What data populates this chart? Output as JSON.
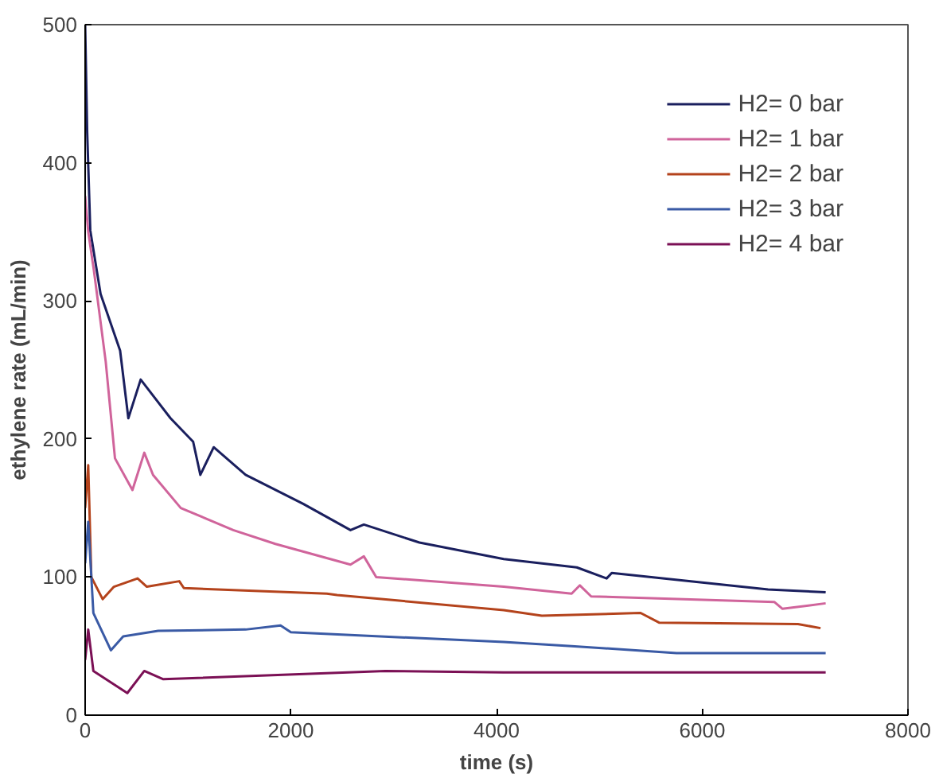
{
  "chart_data": {
    "type": "line",
    "xlabel": "time (s)",
    "ylabel": "ethylene rate (mL/min)",
    "xlim": [
      0,
      8000
    ],
    "ylim": [
      0,
      500
    ],
    "xticks": [
      0,
      2000,
      4000,
      6000,
      8000
    ],
    "yticks": [
      0,
      100,
      200,
      300,
      400,
      500
    ],
    "grid": false,
    "legend": "top right",
    "marker": "none",
    "line_style": "solid",
    "series": [
      {
        "name": "H2= 0 bar",
        "color": "#1a1f5e",
        "x": [
          0,
          20,
          50,
          150,
          340,
          420,
          540,
          830,
          1050,
          1120,
          1250,
          1560,
          2120,
          2580,
          2710,
          3250,
          4070,
          4780,
          5070,
          5120,
          6640,
          7200
        ],
        "values": [
          500,
          422,
          351,
          305,
          264,
          215,
          243,
          215,
          198,
          174,
          194,
          174,
          153,
          134,
          138,
          125,
          113,
          107,
          99,
          103,
          91,
          89
        ]
      },
      {
        "name": "H2= 1 bar",
        "color": "#d0649b",
        "x": [
          0,
          30,
          85,
          200,
          290,
          460,
          575,
          660,
          930,
          1440,
          1850,
          2580,
          2710,
          2830,
          4070,
          4730,
          4810,
          4920,
          6700,
          6780,
          7200
        ],
        "values": [
          376,
          350,
          322,
          256,
          186,
          163,
          190,
          174,
          150,
          134,
          124,
          109,
          115,
          100,
          93,
          88,
          94,
          86,
          82,
          77,
          81
        ]
      },
      {
        "name": "H2= 2 bar",
        "color": "#b4431c",
        "x": [
          0,
          30,
          60,
          170,
          280,
          510,
          600,
          915,
          960,
          2350,
          2450,
          4070,
          4440,
          5400,
          5580,
          6930,
          7150
        ],
        "values": [
          150,
          181,
          100,
          84,
          93,
          99,
          93,
          97,
          92,
          88,
          87,
          76,
          72,
          74,
          67,
          66,
          63
        ]
      },
      {
        "name": "H2= 3 bar",
        "color": "#3a5aa5",
        "x": [
          0,
          30,
          80,
          250,
          370,
          710,
          1560,
          1900,
          2000,
          4070,
          4730,
          5750,
          6700,
          7200
        ],
        "values": [
          110,
          140,
          74,
          47,
          57,
          61,
          62,
          65,
          60,
          53,
          50,
          45,
          45,
          45
        ]
      },
      {
        "name": "H2= 4 bar",
        "color": "#7b1055",
        "x": [
          0,
          30,
          80,
          410,
          575,
          760,
          2920,
          4070,
          5070,
          7200
        ],
        "values": [
          40,
          62,
          32,
          16,
          32,
          26,
          32,
          31,
          31,
          31
        ]
      }
    ]
  }
}
